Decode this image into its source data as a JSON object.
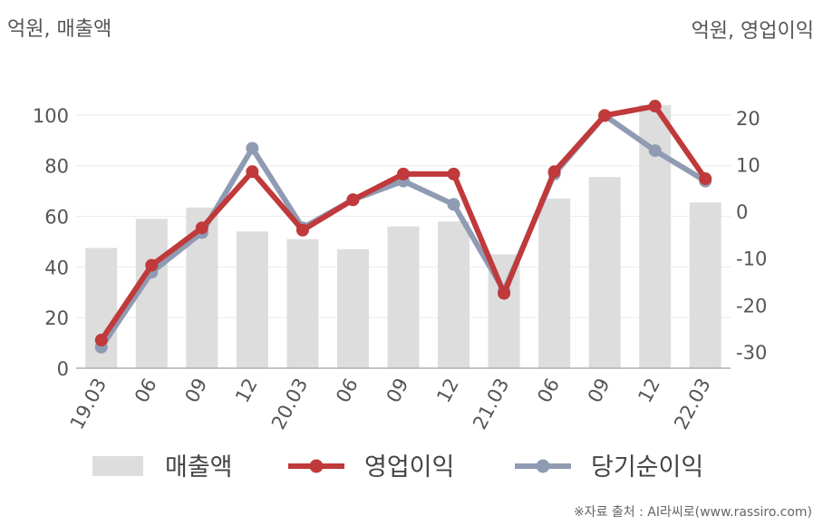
{
  "units": {
    "left": "억원, 매출액",
    "right": "억원, 영업이익"
  },
  "source": "※자료 출처 : AI라씨로(www.rassiro.com)",
  "chart_data": {
    "type": "bar",
    "categories": [
      "19.03",
      "06",
      "09",
      "12",
      "20.03",
      "06",
      "09",
      "12",
      "21.03",
      "06",
      "09",
      "12",
      "22.03"
    ],
    "left_axis": {
      "ylim": [
        0,
        110
      ],
      "ticks": [
        0,
        20,
        40,
        60,
        80,
        100
      ]
    },
    "right_axis": {
      "ylim": [
        -33.5,
        26
      ],
      "ticks": [
        -30,
        -20,
        -10,
        0,
        10,
        20
      ]
    },
    "series": [
      {
        "name": "매출액",
        "type": "bar",
        "axis": "left",
        "color": "#dddddd",
        "values": [
          47.5,
          59,
          63.5,
          54,
          51,
          47,
          56,
          58,
          45,
          67,
          75.5,
          104,
          65.5
        ]
      },
      {
        "name": "영업이익",
        "type": "line",
        "axis": "right",
        "color": "#c0393b",
        "values": [
          -27.5,
          -11.5,
          -3.5,
          8.5,
          -4,
          2.5,
          8,
          8,
          -17.5,
          8.5,
          20.5,
          22.5,
          7
        ]
      },
      {
        "name": "당기순이익",
        "type": "line",
        "axis": "right",
        "color": "#8f9bb3",
        "values": [
          -29,
          -13,
          -4.5,
          13.5,
          -3.5,
          2.5,
          6.5,
          1.5,
          -17,
          8,
          20.5,
          13,
          6.5
        ]
      }
    ],
    "grid": true,
    "legend": "bottom"
  }
}
